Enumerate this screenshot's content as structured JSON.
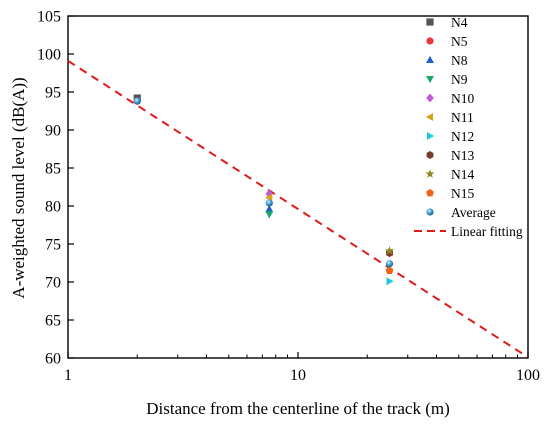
{
  "chart_data": {
    "type": "scatter",
    "xscale": "log",
    "xlim": [
      1,
      100
    ],
    "ylim": [
      60,
      105
    ],
    "grid": false,
    "legend_placement": "top-right",
    "xlabel": "Distance from the centerline of the track (m)",
    "ylabel": "A-weighted sound level (dB(A))",
    "xticks": [
      {
        "value": 1,
        "label": "1"
      },
      {
        "value": 10,
        "label": "10"
      },
      {
        "value": 100,
        "label": "100"
      }
    ],
    "yticks": [
      60,
      65,
      70,
      75,
      80,
      85,
      90,
      95,
      100,
      105
    ],
    "series": [
      {
        "name": "N4",
        "marker": "square",
        "color": "#555555",
        "points": [
          [
            2,
            94.2
          ]
        ]
      },
      {
        "name": "N5",
        "marker": "circle",
        "color": "#e8363d",
        "points": [
          [
            2,
            93.8
          ]
        ]
      },
      {
        "name": "N8",
        "marker": "triangle-up",
        "color": "#1f5fc8",
        "points": [
          [
            7.5,
            79.6
          ]
        ]
      },
      {
        "name": "N9",
        "marker": "triangle-down",
        "color": "#1aa86a",
        "points": [
          [
            7.5,
            78.9
          ]
        ]
      },
      {
        "name": "N10",
        "marker": "diamond",
        "color": "#c25bd8",
        "points": [
          [
            7.5,
            81.6
          ]
        ]
      },
      {
        "name": "N11",
        "marker": "triangle-left",
        "color": "#d8a11a",
        "points": [
          [
            7.5,
            81.1
          ],
          [
            25,
            73.9
          ]
        ]
      },
      {
        "name": "N12",
        "marker": "triangle-right",
        "color": "#22c8d8",
        "points": [
          [
            25,
            70.1
          ]
        ]
      },
      {
        "name": "N13",
        "marker": "hexagon",
        "color": "#7a3a2e",
        "points": [
          [
            25,
            73.8
          ]
        ]
      },
      {
        "name": "N14",
        "marker": "star",
        "color": "#8a8a20",
        "points": [
          [
            25,
            74.1
          ]
        ]
      },
      {
        "name": "N15",
        "marker": "pentagon",
        "color": "#f06418",
        "points": [
          [
            25,
            71.5
          ]
        ]
      },
      {
        "name": "Average",
        "marker": "sphere",
        "color": "#3a9ad0",
        "points": [
          [
            2,
            93.8
          ],
          [
            7.5,
            80.4
          ],
          [
            25,
            72.4
          ]
        ]
      }
    ],
    "fit": {
      "name": "Linear fitting",
      "color": "#e01818",
      "style": "dashed",
      "x": [
        1,
        100
      ],
      "y": [
        99.1,
        60.1
      ]
    }
  }
}
